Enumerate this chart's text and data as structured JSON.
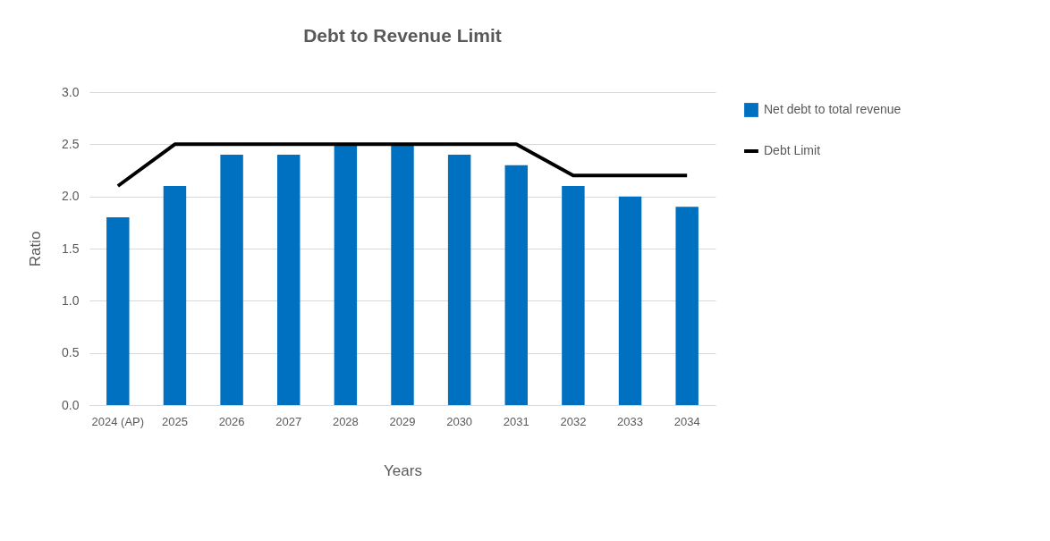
{
  "chart_data": {
    "type": "bar",
    "title": "Debt to Revenue Limit",
    "xlabel": "Years",
    "ylabel": "Ratio",
    "categories": [
      "2024 (AP)",
      "2025",
      "2026",
      "2027",
      "2028",
      "2029",
      "2030",
      "2031",
      "2032",
      "2033",
      "2034"
    ],
    "series": [
      {
        "name": "Net debt to total revenue",
        "color": "#0070c0",
        "values": [
          1.8,
          2.1,
          2.4,
          2.4,
          2.5,
          2.5,
          2.4,
          2.3,
          2.1,
          2.0,
          1.9
        ]
      },
      {
        "name": "Debt Limit",
        "type": "line",
        "color": "#000000",
        "values": [
          2.1,
          2.5,
          2.5,
          2.5,
          2.5,
          2.5,
          2.5,
          2.5,
          2.2,
          2.2,
          2.2
        ]
      }
    ],
    "ylim": [
      0,
      3
    ],
    "yticks": [
      {
        "value": 0,
        "label": "0.0"
      },
      {
        "value": 0.5,
        "label": "0.5"
      },
      {
        "value": 1,
        "label": "1.0"
      },
      {
        "value": 1.5,
        "label": "1.5"
      },
      {
        "value": 2,
        "label": "2.0"
      },
      {
        "value": 2.5,
        "label": "2.5"
      },
      {
        "value": 3,
        "label": "3.0"
      }
    ],
    "grid": "y",
    "legend": "right"
  }
}
